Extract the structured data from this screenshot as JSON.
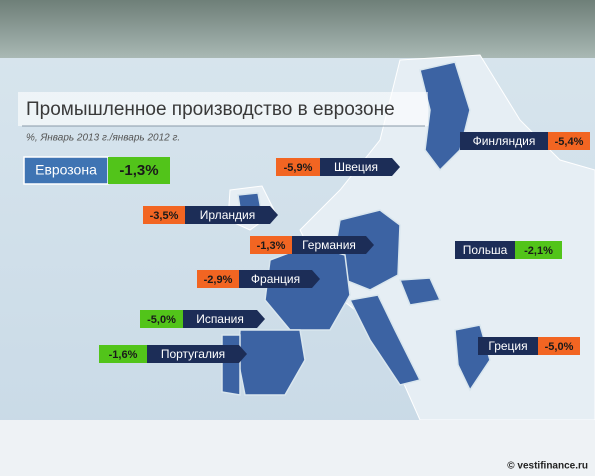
{
  "title": "Промышленное производство в еврозоне",
  "subtitle": "%, Январь 2013 г./январь 2012 г.",
  "summary": {
    "name": "Еврозона",
    "value": -1.3,
    "value_label": "-1,3%",
    "color": "#52c41a"
  },
  "countries": [
    {
      "name": "Финляндия",
      "value": -5.4,
      "value_label": "-5,4%",
      "color": "#f26522"
    },
    {
      "name": "Швеция",
      "value": -5.9,
      "value_label": "-5,9%",
      "color": "#f26522"
    },
    {
      "name": "Ирландия",
      "value": -3.5,
      "value_label": "-3,5%",
      "color": "#f26522"
    },
    {
      "name": "Германия",
      "value": -1.3,
      "value_label": "-1,3%",
      "color": "#f26522"
    },
    {
      "name": "Польша",
      "value": -2.1,
      "value_label": "-2,1%",
      "color": "#52c41a"
    },
    {
      "name": "Франция",
      "value": -2.9,
      "value_label": "-2,9%",
      "color": "#f26522"
    },
    {
      "name": "Испания",
      "value": -5.0,
      "value_label": "-5,0%",
      "color": "#52c41a"
    },
    {
      "name": "Португалия",
      "value": -1.6,
      "value_label": "-1,6%",
      "color": "#52c41a"
    },
    {
      "name": "Греция",
      "value": -5.0,
      "value_label": "-5,0%",
      "color": "#f26522"
    }
  ],
  "source": "© vestifinance.ru"
}
